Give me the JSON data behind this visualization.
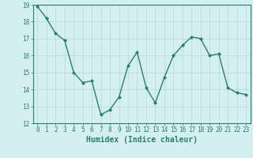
{
  "x": [
    0,
    1,
    2,
    3,
    4,
    5,
    6,
    7,
    8,
    9,
    10,
    11,
    12,
    13,
    14,
    15,
    16,
    17,
    18,
    19,
    20,
    21,
    22,
    23
  ],
  "y": [
    18.9,
    18.2,
    17.3,
    16.9,
    15.0,
    14.4,
    14.5,
    12.5,
    12.8,
    13.55,
    15.4,
    16.2,
    14.1,
    13.2,
    14.7,
    16.0,
    16.6,
    17.1,
    17.0,
    16.0,
    16.1,
    14.1,
    13.8,
    13.7
  ],
  "line_color": "#2d7d6e",
  "marker": "D",
  "marker_size": 2,
  "bg_color": "#d4efef",
  "grid_color": "#b8d8d8",
  "xlabel": "Humidex (Indice chaleur)",
  "ylim": [
    12,
    19
  ],
  "xlim_min": -0.5,
  "xlim_max": 23.5,
  "yticks": [
    12,
    13,
    14,
    15,
    16,
    17,
    18,
    19
  ],
  "xticks": [
    0,
    1,
    2,
    3,
    4,
    5,
    6,
    7,
    8,
    9,
    10,
    11,
    12,
    13,
    14,
    15,
    16,
    17,
    18,
    19,
    20,
    21,
    22,
    23
  ],
  "xlabel_fontsize": 7,
  "tick_fontsize": 5.5,
  "linewidth": 1.0
}
